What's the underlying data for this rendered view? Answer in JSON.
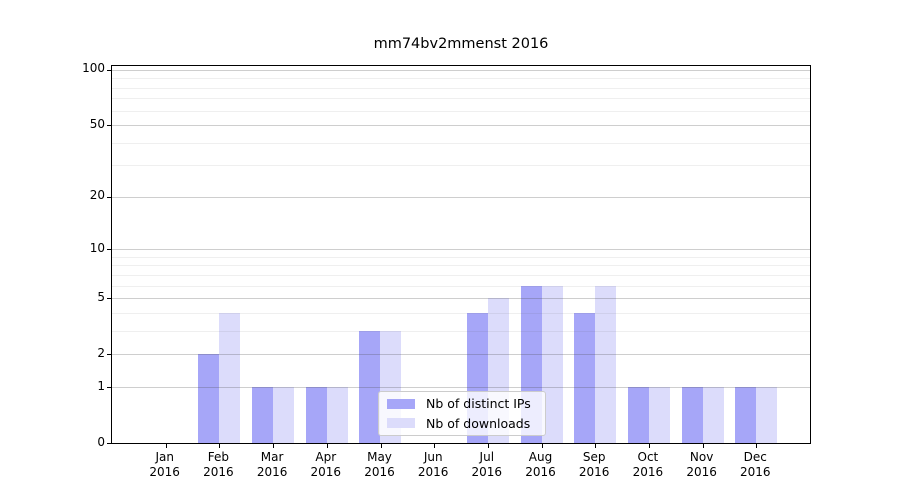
{
  "chart_data": {
    "type": "bar",
    "title": "mm74bv2mmenst 2016",
    "categories": [
      "Jan",
      "Feb",
      "Mar",
      "Apr",
      "May",
      "Jun",
      "Jul",
      "Aug",
      "Sep",
      "Oct",
      "Nov",
      "Dec"
    ],
    "year_label": "2016",
    "series": [
      {
        "name": "Nb of distinct IPs",
        "color": "#a6a6f8",
        "values": [
          0,
          2,
          1,
          1,
          3,
          0,
          4,
          6,
          4,
          1,
          1,
          1
        ]
      },
      {
        "name": "Nb of downloads",
        "color": "#dcdcfb",
        "values": [
          0,
          4,
          1,
          1,
          3,
          0,
          5,
          6,
          6,
          1,
          1,
          1
        ]
      }
    ],
    "yscale": "log1p",
    "ylim": [
      0,
      105
    ],
    "yticks": [
      0,
      1,
      2,
      5,
      10,
      20,
      50,
      100
    ],
    "minor_gridlines": [
      3,
      4,
      6,
      7,
      8,
      9,
      30,
      40,
      60,
      70,
      80,
      90
    ],
    "grid": true,
    "legend_position": "bottom-center"
  }
}
